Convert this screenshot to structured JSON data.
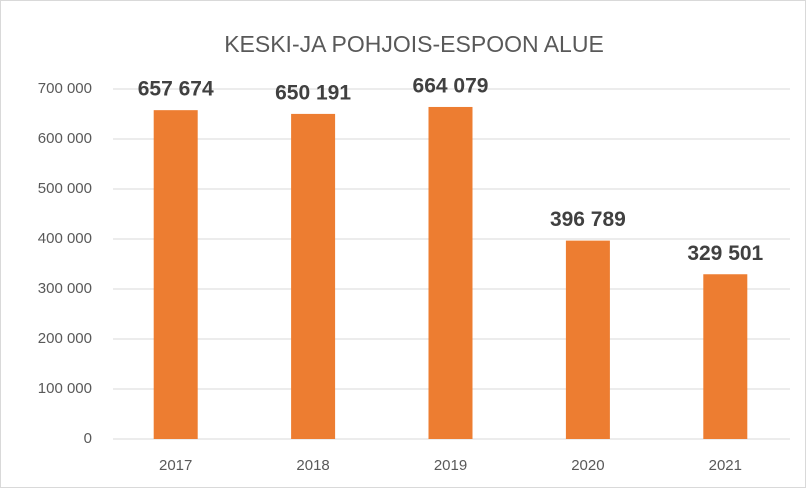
{
  "chart_data": {
    "type": "bar",
    "title": "KESKI-JA POHJOIS-ESPOON ALUE",
    "categories": [
      "2017",
      "2018",
      "2019",
      "2020",
      "2021"
    ],
    "values": [
      657674,
      650191,
      664079,
      396789,
      329501
    ],
    "value_labels": [
      "657 674",
      "650 191",
      "664 079",
      "396 789",
      "329 501"
    ],
    "color": "#ed7d31",
    "ylim": [
      0,
      700000
    ],
    "yticks": [
      0,
      {
        "value": 100000,
        "label": "100 000"
      },
      {
        "value": 200000,
        "label": "200 000"
      },
      {
        "value": 300000,
        "label": "300 000"
      },
      {
        "value": 400000,
        "label": "400 000"
      },
      {
        "value": 500000,
        "label": "500 000"
      },
      {
        "value": 600000,
        "label": "600 000"
      },
      {
        "value": 700000,
        "label": "700 000"
      }
    ],
    "grid": true
  }
}
